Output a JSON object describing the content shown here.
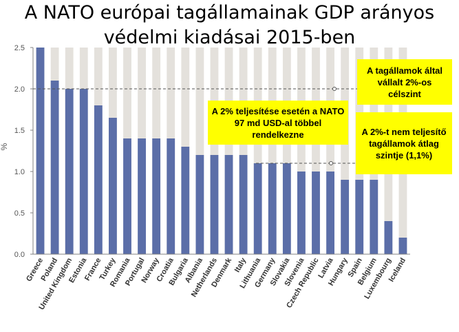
{
  "title": {
    "line1": "A NATO európai tagállamainak GDP arányos",
    "line2": "védelmi kiadásai 2015-ben"
  },
  "callouts": {
    "target": "A tagállamok által vállalt 2%-os célszint",
    "nato_gain": "A 2% teljesítése esetén a NATO 97 md USD-al többel rendelkezne",
    "average": "A 2%-t nem teljesítő tagállamok átlag szintje (1,1%)"
  },
  "colors": {
    "bar": "#5b6ea8",
    "bar_background": "#e4e1dc",
    "callout": "#ffff00",
    "axis": "#808080"
  },
  "chart_data": {
    "type": "bar",
    "title": "",
    "xlabel": "",
    "ylabel": "%",
    "ylim": [
      0,
      2.5
    ],
    "yticks": [
      "0.0",
      "0.5",
      "1.0",
      "1.5",
      "2.0",
      "2.5"
    ],
    "grid": false,
    "categories": [
      "Greece",
      "Poland",
      "United Kingdom",
      "Estonia",
      "France",
      "Turkey",
      "Romania",
      "Portugal",
      "Norway",
      "Croatia",
      "Bulgaria",
      "Albania",
      "Netherlands",
      "Denmark",
      "Italy",
      "Lithuania",
      "Germany",
      "Slovakia",
      "Slovenia",
      "Czech Republic",
      "Latvia",
      "Hungary",
      "Spain",
      "Belgium",
      "Luxembourg",
      "Iceland"
    ],
    "values": [
      2.5,
      2.1,
      2.0,
      2.0,
      1.8,
      1.65,
      1.4,
      1.4,
      1.4,
      1.4,
      1.3,
      1.2,
      1.2,
      1.2,
      1.2,
      1.1,
      1.1,
      1.1,
      1.0,
      1.0,
      1.0,
      0.9,
      0.9,
      0.9,
      0.4,
      0.2
    ],
    "target_level": 2.0,
    "average_level": 1.1
  }
}
